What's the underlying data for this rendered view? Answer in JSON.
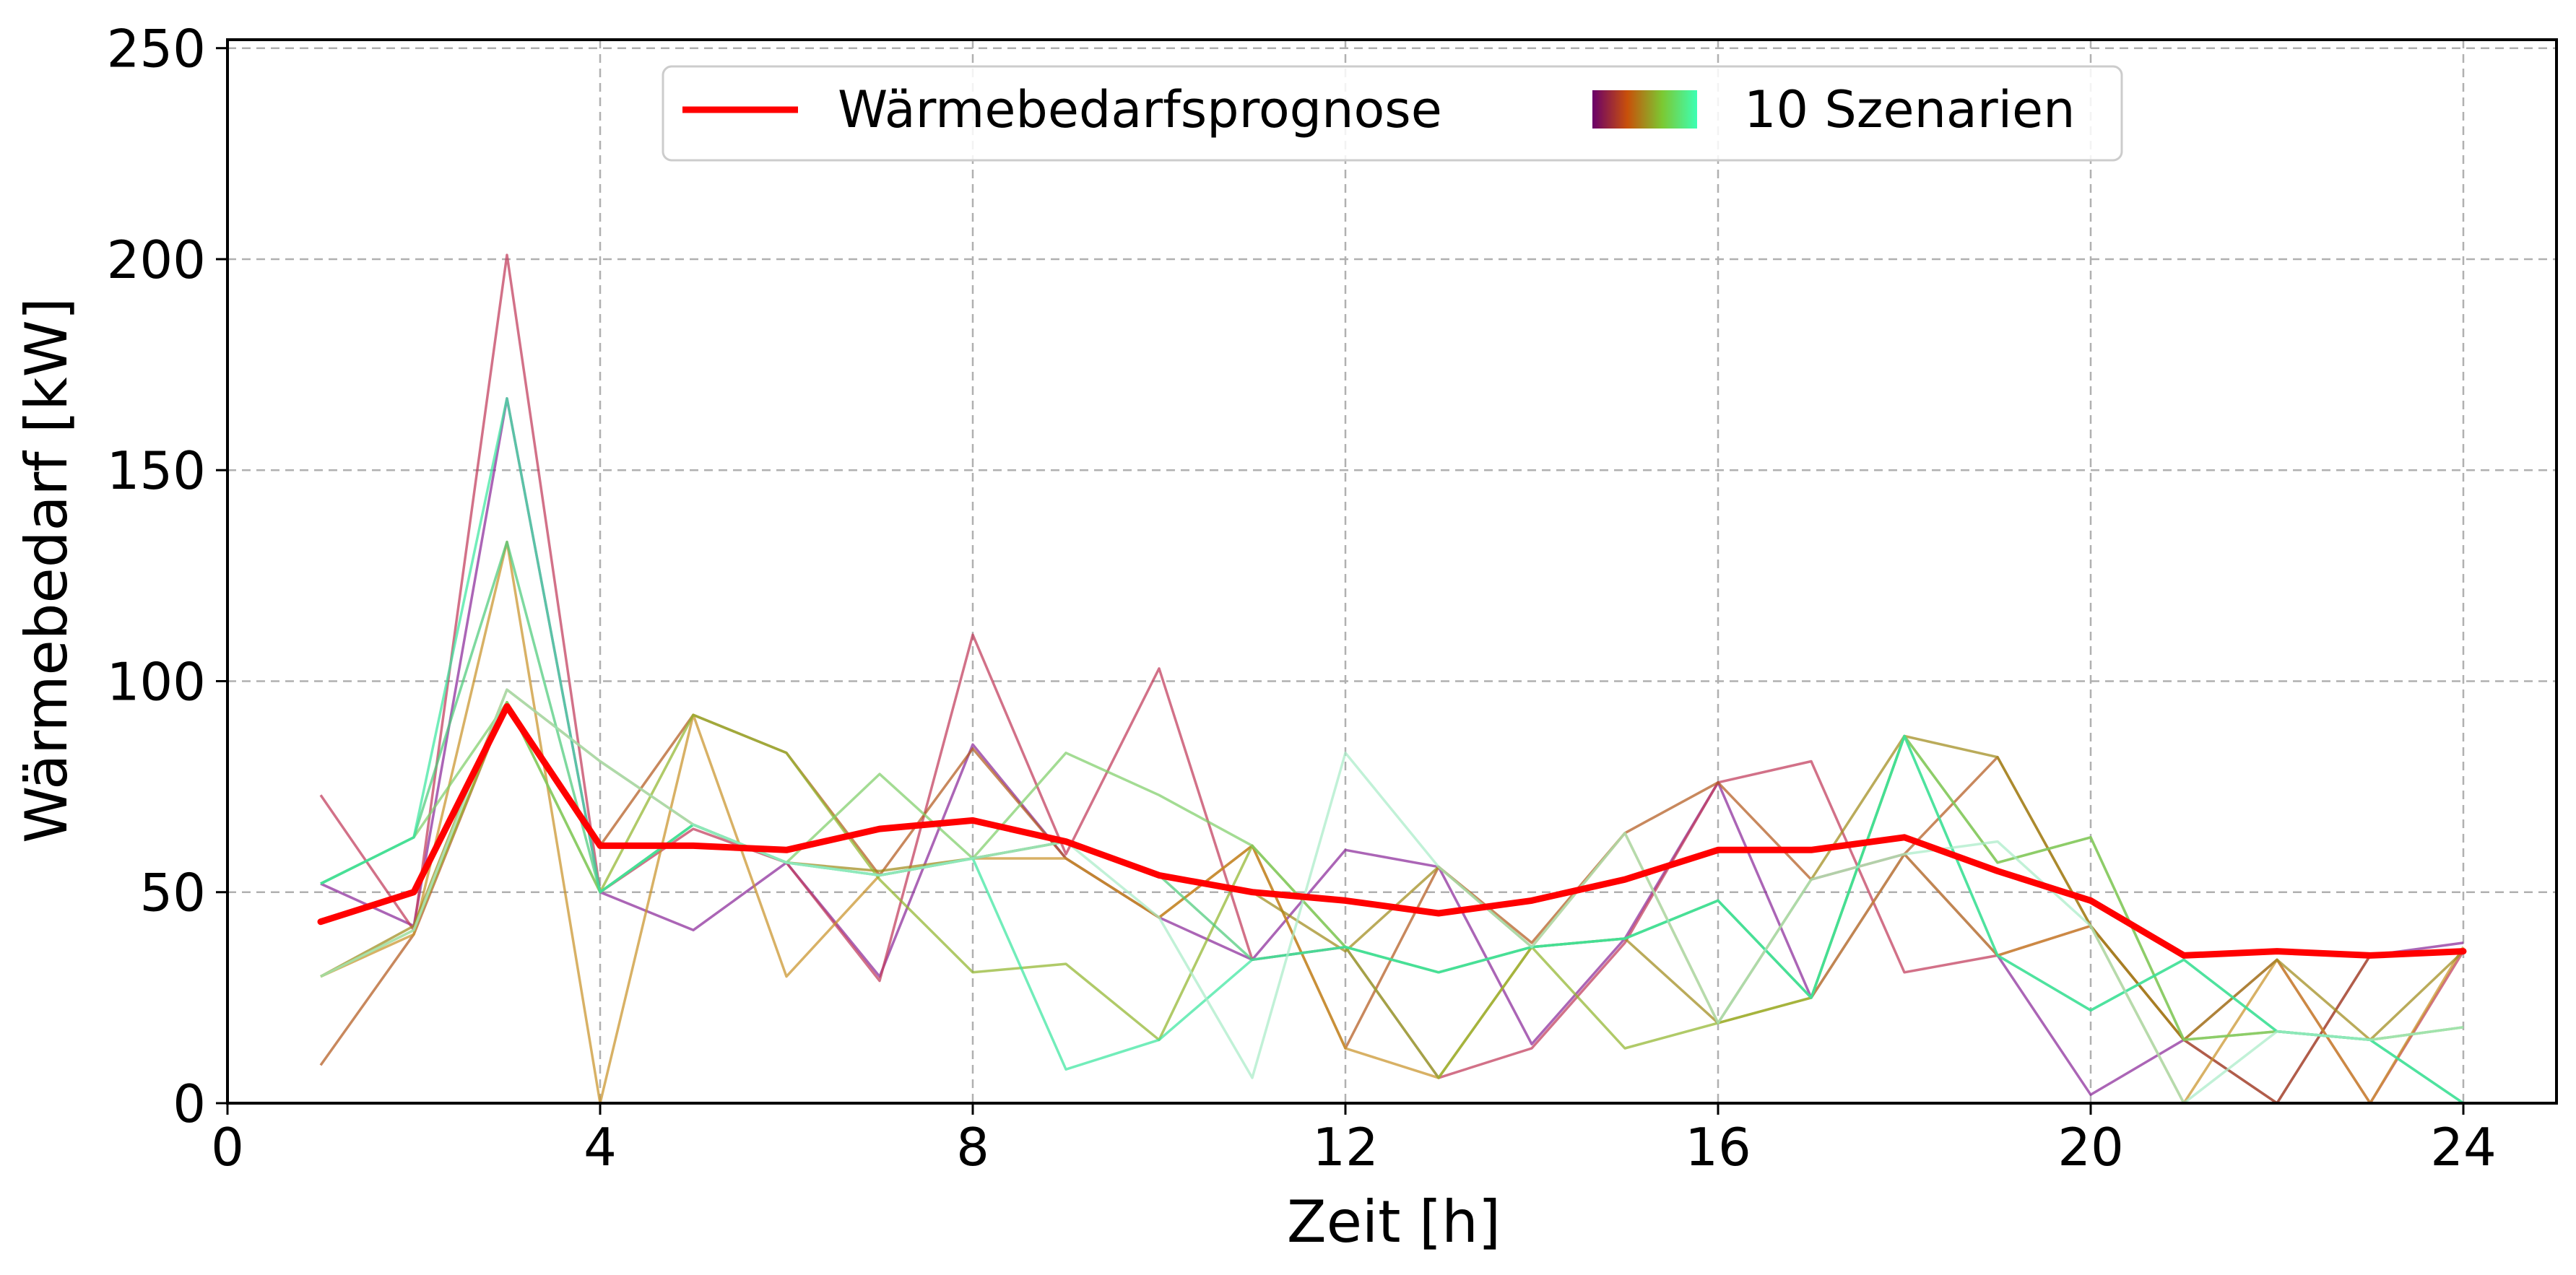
{
  "chart_data": {
    "type": "line",
    "xlabel": "Zeit [h]",
    "ylabel": "Wärmebedarf [kW]",
    "xlim": [
      0,
      25
    ],
    "ylim": [
      0,
      252
    ],
    "x_ticks": [
      "0",
      "4",
      "8",
      "12",
      "16",
      "20",
      "24"
    ],
    "y_ticks": [
      "0",
      "50",
      "100",
      "150",
      "200",
      "250"
    ],
    "grid": true,
    "legend_position": "top-center",
    "x": [
      1,
      2,
      3,
      4,
      5,
      6,
      7,
      8,
      9,
      10,
      11,
      12,
      13,
      14,
      15,
      16,
      17,
      18,
      19,
      20,
      21,
      22,
      23,
      24
    ],
    "forecast": {
      "name": "Wärmebedarfsprognose",
      "color": "#ff0000",
      "values": [
        43,
        50,
        94,
        61,
        61,
        60,
        65,
        67,
        62,
        54,
        50,
        48,
        45,
        48,
        53,
        60,
        60,
        63,
        55,
        48,
        35,
        36,
        35,
        36
      ]
    },
    "scenario_legend": "10 Szenarien",
    "scenario_gradient": [
      "#6a006a",
      "#c8500a",
      "#7cc832",
      "#3cffb4"
    ],
    "scenarios": [
      {
        "color": "#8b2a9a",
        "values": [
          52,
          42,
          167,
          50,
          41,
          57,
          30,
          85,
          58,
          44,
          34,
          60,
          56,
          14,
          39,
          76,
          25,
          59,
          35,
          2,
          15,
          0,
          35,
          38
        ]
      },
      {
        "color": "#c13a5a",
        "values": [
          73,
          41,
          201,
          50,
          65,
          57,
          29,
          111,
          59,
          103,
          34,
          37,
          6,
          13,
          38,
          76,
          81,
          31,
          35,
          42,
          15,
          34,
          0,
          36
        ]
      },
      {
        "color": "#b35a1f",
        "values": [
          9,
          40,
          95,
          61,
          92,
          83,
          54,
          84,
          58,
          44,
          61,
          13,
          56,
          38,
          64,
          76,
          53,
          59,
          82,
          42,
          15,
          0,
          35,
          36
        ]
      },
      {
        "color": "#c9932a",
        "values": [
          30,
          40,
          133,
          0,
          92,
          30,
          54,
          58,
          58,
          44,
          61,
          13,
          6,
          37,
          64,
          19,
          25,
          59,
          35,
          42,
          0,
          34,
          0,
          37
        ]
      },
      {
        "color": "#a08a1a",
        "values": [
          30,
          42,
          98,
          81,
          66,
          57,
          55,
          58,
          62,
          54,
          50,
          36,
          56,
          37,
          39,
          19,
          53,
          87,
          82,
          42,
          15,
          34,
          15,
          36
        ]
      },
      {
        "color": "#92b52e",
        "values": [
          30,
          41,
          95,
          50,
          92,
          83,
          53,
          31,
          33,
          15,
          61,
          37,
          6,
          37,
          13,
          19,
          25,
          87,
          57,
          63,
          15,
          17,
          15,
          18
        ]
      },
      {
        "color": "#7fcf6a",
        "values": [
          52,
          63,
          95,
          50,
          66,
          57,
          78,
          58,
          83,
          73,
          61,
          37,
          31,
          37,
          39,
          48,
          25,
          87,
          57,
          63,
          15,
          17,
          15,
          18
        ]
      },
      {
        "color": "#4ccb7a",
        "values": [
          52,
          63,
          133,
          50,
          66,
          57,
          54,
          58,
          62,
          54,
          34,
          37,
          31,
          37,
          39,
          48,
          25,
          87,
          35,
          22,
          34,
          17,
          15,
          0
        ]
      },
      {
        "color": "#3ce6a0",
        "values": [
          52,
          63,
          167,
          50,
          66,
          57,
          54,
          58,
          8,
          15,
          34,
          37,
          31,
          37,
          39,
          48,
          25,
          87,
          35,
          22,
          34,
          17,
          15,
          0
        ]
      },
      {
        "color": "#a9ebc8",
        "values": [
          30,
          41,
          98,
          81,
          66,
          57,
          54,
          58,
          62,
          44,
          6,
          83,
          56,
          37,
          64,
          19,
          53,
          59,
          62,
          42,
          0,
          17,
          15,
          18
        ]
      }
    ]
  }
}
